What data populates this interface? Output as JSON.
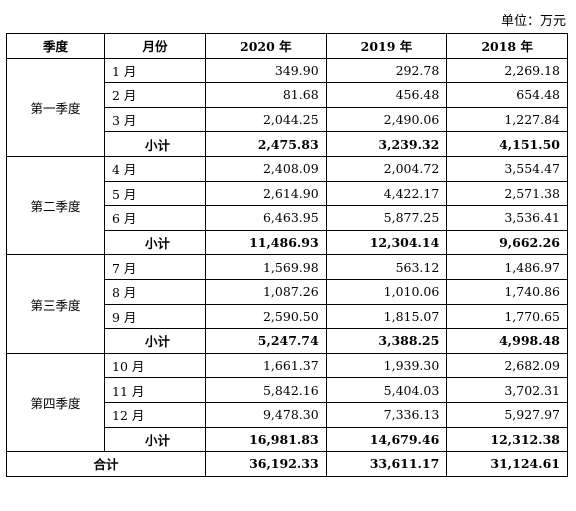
{
  "unit_label": "单位：万元",
  "headers": {
    "season": "季度",
    "month": "月份",
    "y2020": "2020 年",
    "y2019": "2019 年",
    "y2018": "2018 年"
  },
  "quarters": [
    {
      "name": "第一季度",
      "months": [
        {
          "label": "1 月",
          "v2020": "349.90",
          "v2019": "292.78",
          "v2018": "2,269.18"
        },
        {
          "label": "2 月",
          "v2020": "81.68",
          "v2019": "456.48",
          "v2018": "654.48"
        },
        {
          "label": "3 月",
          "v2020": "2,044.25",
          "v2019": "2,490.06",
          "v2018": "1,227.84"
        }
      ],
      "subtotal": {
        "label": "小计",
        "v2020": "2,475.83",
        "v2019": "3,239.32",
        "v2018": "4,151.50"
      }
    },
    {
      "name": "第二季度",
      "months": [
        {
          "label": "4 月",
          "v2020": "2,408.09",
          "v2019": "2,004.72",
          "v2018": "3,554.47"
        },
        {
          "label": "5 月",
          "v2020": "2,614.90",
          "v2019": "4,422.17",
          "v2018": "2,571.38"
        },
        {
          "label": "6 月",
          "v2020": "6,463.95",
          "v2019": "5,877.25",
          "v2018": "3,536.41"
        }
      ],
      "subtotal": {
        "label": "小计",
        "v2020": "11,486.93",
        "v2019": "12,304.14",
        "v2018": "9,662.26"
      }
    },
    {
      "name": "第三季度",
      "months": [
        {
          "label": "7 月",
          "v2020": "1,569.98",
          "v2019": "563.12",
          "v2018": "1,486.97"
        },
        {
          "label": "8 月",
          "v2020": "1,087.26",
          "v2019": "1,010.06",
          "v2018": "1,740.86"
        },
        {
          "label": "9 月",
          "v2020": "2,590.50",
          "v2019": "1,815.07",
          "v2018": "1,770.65"
        }
      ],
      "subtotal": {
        "label": "小计",
        "v2020": "5,247.74",
        "v2019": "3,388.25",
        "v2018": "4,998.48"
      }
    },
    {
      "name": "第四季度",
      "months": [
        {
          "label": "10 月",
          "v2020": "1,661.37",
          "v2019": "1,939.30",
          "v2018": "2,682.09"
        },
        {
          "label": "11 月",
          "v2020": "5,842.16",
          "v2019": "5,404.03",
          "v2018": "3,702.31"
        },
        {
          "label": "12 月",
          "v2020": "9,478.30",
          "v2019": "7,336.13",
          "v2018": "5,927.97"
        }
      ],
      "subtotal": {
        "label": "小计",
        "v2020": "16,981.83",
        "v2019": "14,679.46",
        "v2018": "12,312.38"
      }
    }
  ],
  "total": {
    "label": "合计",
    "v2020": "36,192.33",
    "v2019": "33,611.17",
    "v2018": "31,124.61"
  }
}
